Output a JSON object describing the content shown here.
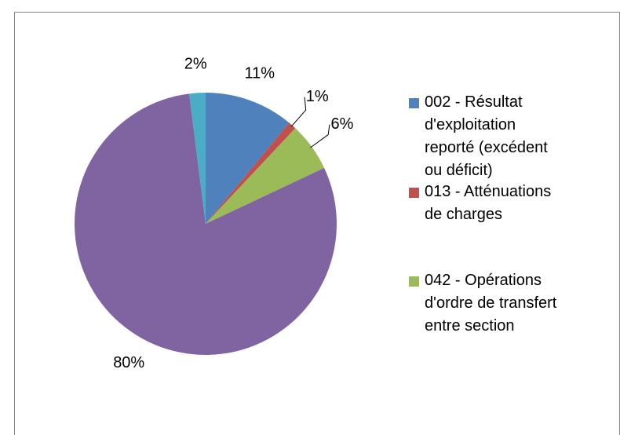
{
  "chart_data": {
    "type": "pie",
    "categories": [
      "002 - Résultat d'exploitation reporté (excédent ou déficit)",
      "013 - Atténuations de charges",
      "042 - Opérations d'ordre de transfert entre section",
      null,
      null
    ],
    "values": [
      11,
      1,
      6,
      80,
      2
    ],
    "value_labels": [
      "11%",
      "1%",
      "6%",
      "80%",
      "2%"
    ],
    "colors": [
      "#4f81bd",
      "#c0504d",
      "#9bbb59",
      "#8064a2",
      "#4bacc6"
    ],
    "legend": "right"
  }
}
